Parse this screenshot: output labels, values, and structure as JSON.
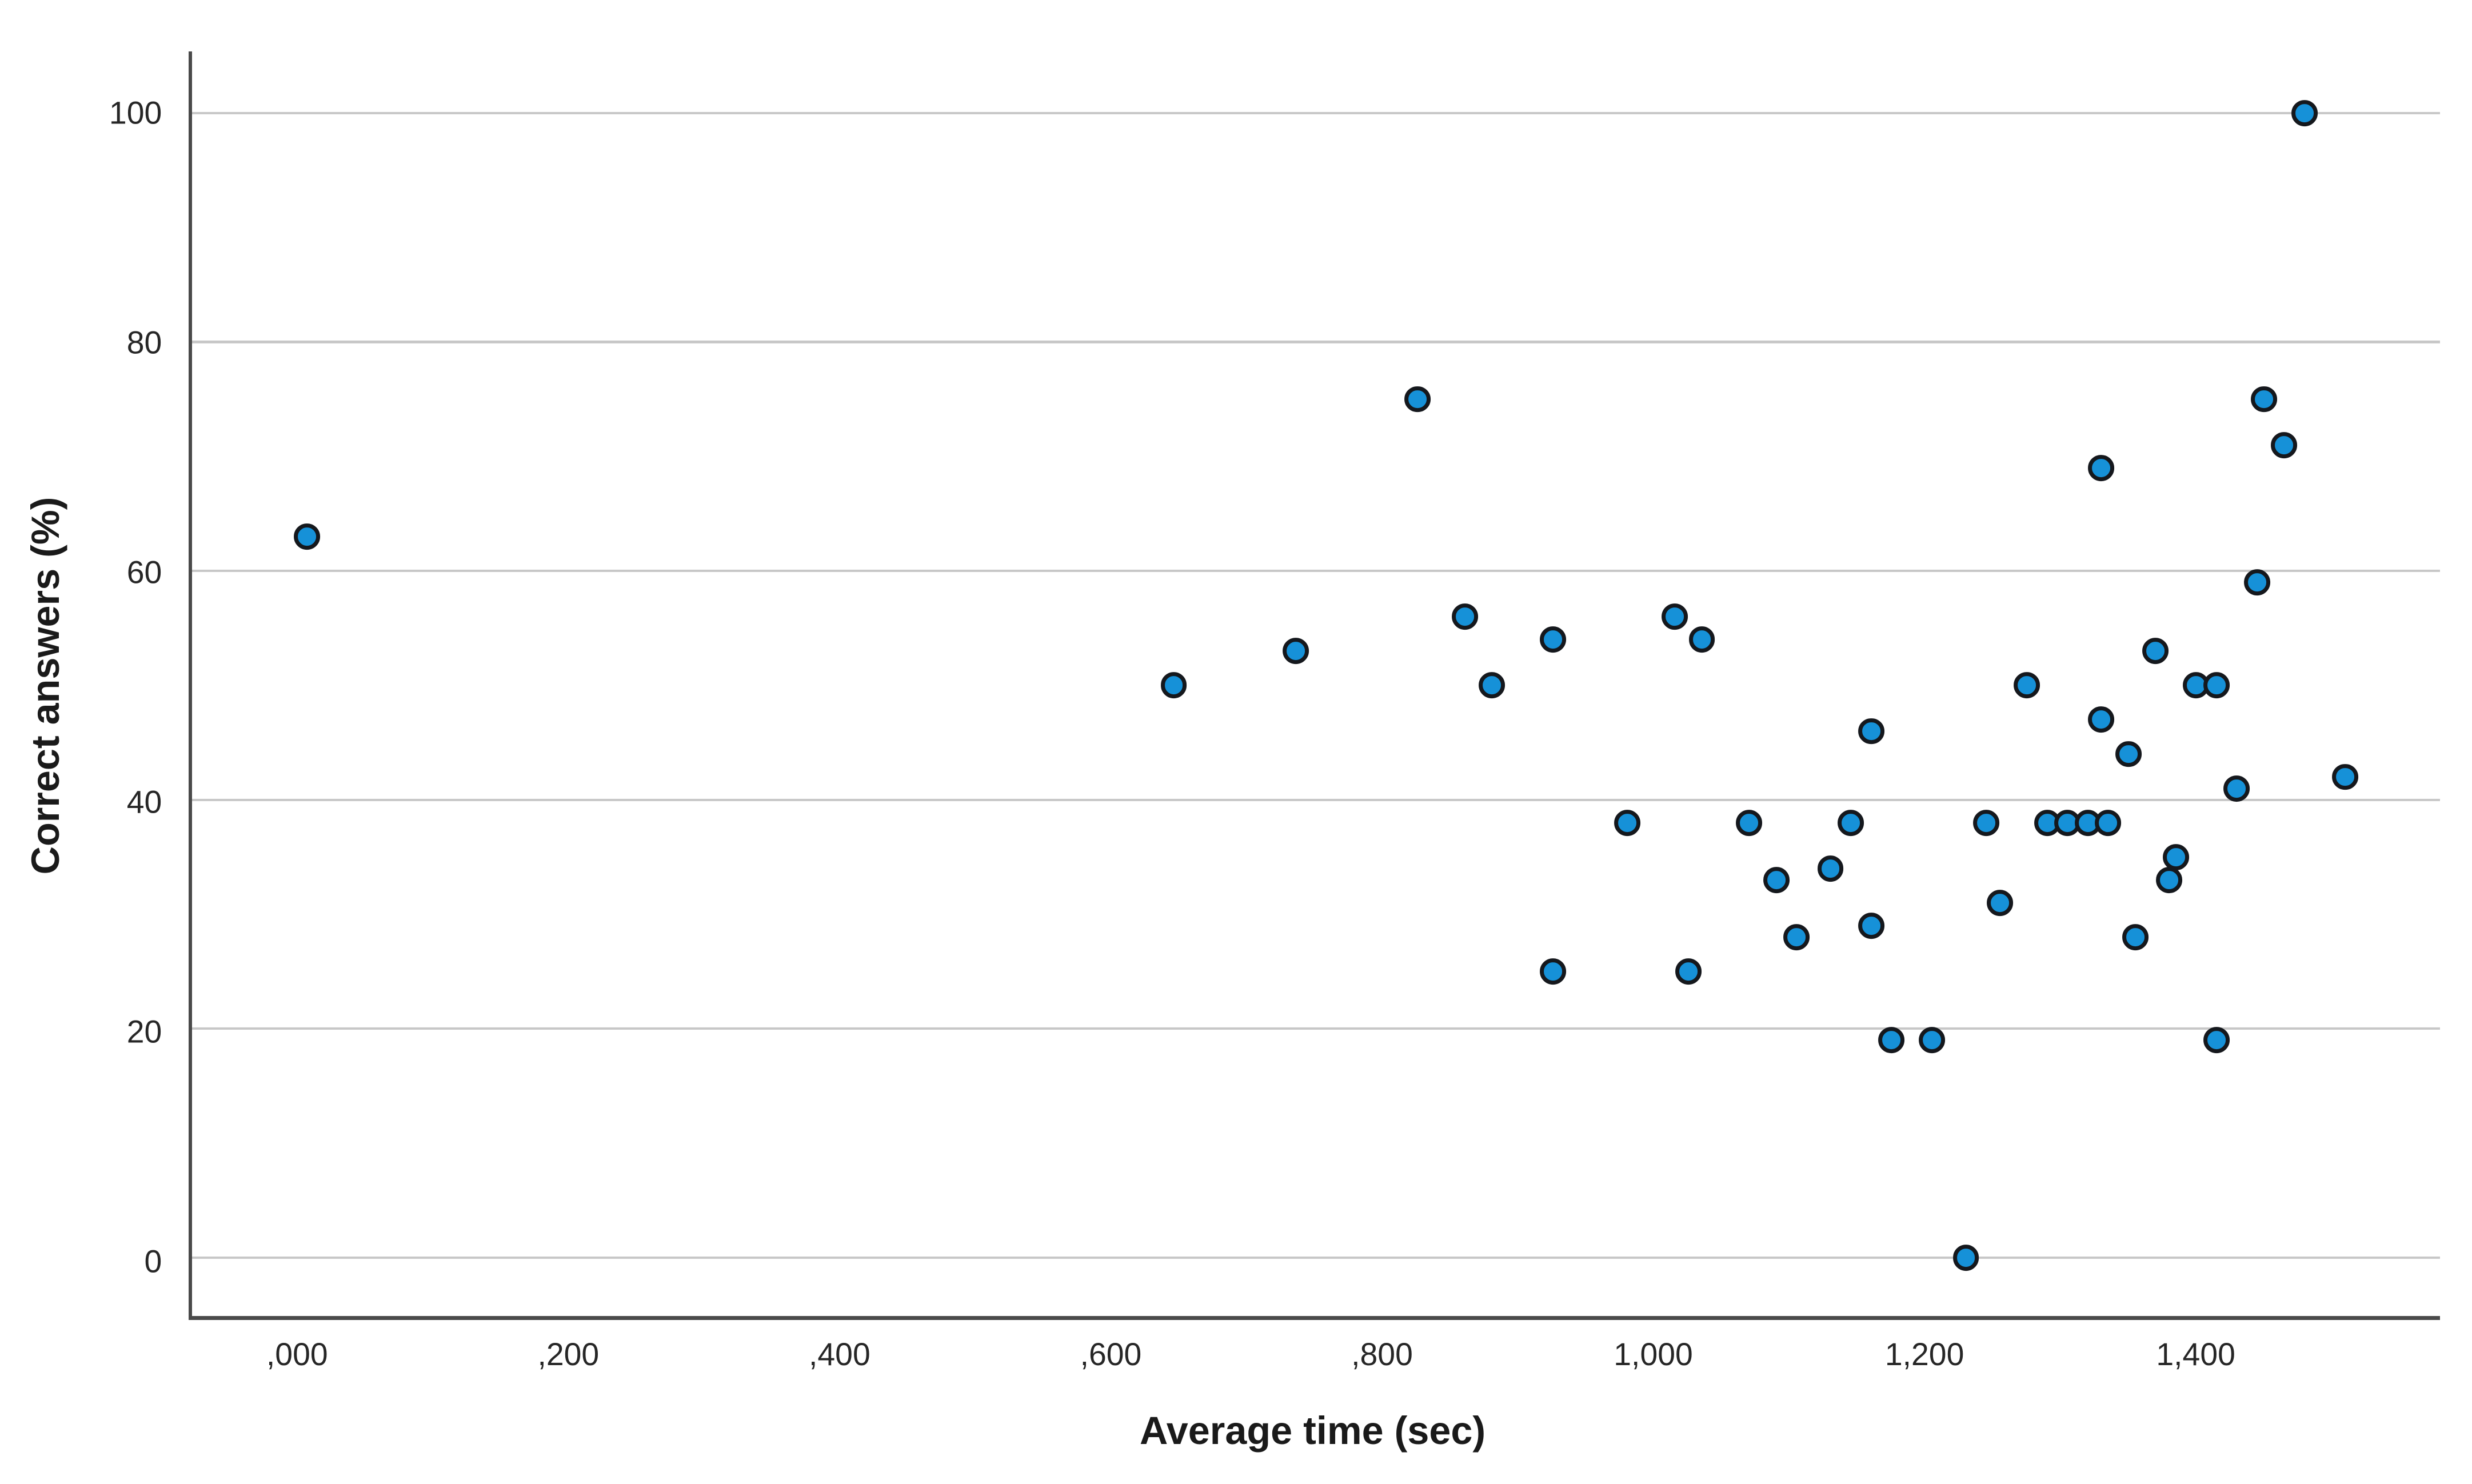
{
  "chart_data": {
    "type": "scatter",
    "title": "",
    "xlabel": "Average time (sec)",
    "ylabel": "Correct answers (%)",
    "legend": "none",
    "grid": "horizontal gridlines only, light gray",
    "xlim": [
      -80,
      1580
    ],
    "ylim": [
      -5.1,
      105.4
    ],
    "x_ticks": [
      {
        "value": 0,
        "label": ",000"
      },
      {
        "value": 200,
        "label": ",200"
      },
      {
        "value": 400,
        "label": ",400"
      },
      {
        "value": 600,
        "label": ",600"
      },
      {
        "value": 800,
        "label": ",800"
      },
      {
        "value": 1000,
        "label": "1,000"
      },
      {
        "value": 1200,
        "label": "1,200"
      },
      {
        "value": 1400,
        "label": "1,400"
      }
    ],
    "y_ticks": [
      {
        "value": 0,
        "label": "0"
      },
      {
        "value": 20,
        "label": "20"
      },
      {
        "value": 40,
        "label": "40"
      },
      {
        "value": 60,
        "label": "60"
      },
      {
        "value": 80,
        "label": "80"
      },
      {
        "value": 100,
        "label": "100"
      }
    ],
    "points": [
      [
        5,
        63
      ],
      [
        645,
        50
      ],
      [
        735,
        53
      ],
      [
        825,
        75
      ],
      [
        860,
        56
      ],
      [
        880,
        50
      ],
      [
        925,
        54
      ],
      [
        925,
        25
      ],
      [
        980,
        38
      ],
      [
        1015,
        56
      ],
      [
        1025,
        25
      ],
      [
        1035,
        54
      ],
      [
        1070,
        38
      ],
      [
        1090,
        33
      ],
      [
        1105,
        28
      ],
      [
        1130,
        34
      ],
      [
        1145,
        38
      ],
      [
        1160,
        46
      ],
      [
        1160,
        29
      ],
      [
        1175,
        19
      ],
      [
        1205,
        19
      ],
      [
        1230,
        0
      ],
      [
        1245,
        38
      ],
      [
        1255,
        31
      ],
      [
        1275,
        50
      ],
      [
        1290,
        38
      ],
      [
        1305,
        38
      ],
      [
        1320,
        38
      ],
      [
        1330,
        47
      ],
      [
        1330,
        69
      ],
      [
        1335,
        38
      ],
      [
        1350,
        44
      ],
      [
        1355,
        28
      ],
      [
        1370,
        53
      ],
      [
        1380,
        33
      ],
      [
        1385,
        35
      ],
      [
        1400,
        50
      ],
      [
        1415,
        50
      ],
      [
        1415,
        19
      ],
      [
        1430,
        41
      ],
      [
        1445,
        59
      ],
      [
        1450,
        75
      ],
      [
        1465,
        71
      ],
      [
        1480,
        100
      ],
      [
        1510,
        42
      ]
    ],
    "marker": {
      "shape": "circle",
      "fill": "#1691D8",
      "stroke": "#15181d"
    },
    "colors": {
      "gridline": "#c7c7c7",
      "axis_line": "#4a4a4a",
      "tick_text": "#262626",
      "title_text": "#1a1a1a",
      "background": "#ffffff"
    }
  }
}
